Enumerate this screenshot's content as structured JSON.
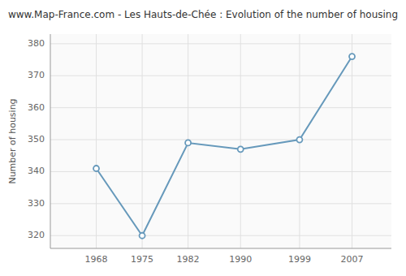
{
  "chart_data": {
    "type": "line",
    "title": "www.Map-France.com - Les Hauts-de-Chée : Evolution of the number of housing",
    "y_label": "Number of housing",
    "x": [
      1968,
      1975,
      1982,
      1990,
      1999,
      2007
    ],
    "values": [
      341,
      320,
      349,
      347,
      350,
      376
    ],
    "color": "#6699bb",
    "marker": "circle",
    "xlim": [
      1961,
      2013
    ],
    "xticks": [
      1968,
      1975,
      1982,
      1990,
      1999,
      2007
    ],
    "ylim": [
      316,
      383
    ],
    "yticks": [
      320,
      330,
      340,
      350,
      360,
      370,
      380
    ],
    "grid": true
  }
}
